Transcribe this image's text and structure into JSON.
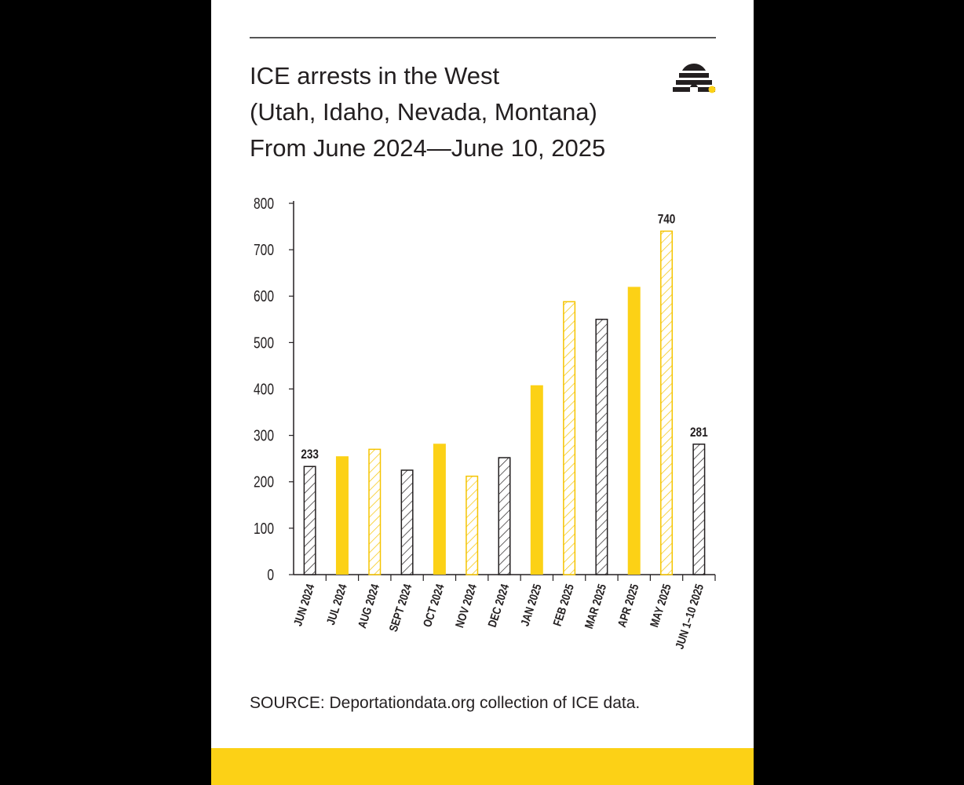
{
  "colors": {
    "accent_yellow": "#fcd116",
    "ink": "#231f20",
    "background": "#ffffff",
    "outer": "#000000"
  },
  "header": {
    "title_lines": [
      "ICE arrests in the West",
      "(Utah, Idaho, Nevada, Montana)",
      "From June 2024—June 10, 2025"
    ],
    "logo_icon": "beehive-icon"
  },
  "source": "SOURCE: Deportationdata.org collection of ICE data.",
  "chart_data": {
    "type": "bar",
    "title": "ICE arrests in the West (Utah, Idaho, Nevada, Montana) From June 2024—June 10, 2025",
    "xlabel": "",
    "ylabel": "",
    "ylim": [
      0,
      800
    ],
    "yticks": [
      0,
      100,
      200,
      300,
      400,
      500,
      600,
      700,
      800
    ],
    "grid": false,
    "categories": [
      "JUN 2024",
      "JUL 2024",
      "AUG 2024",
      "SEPT 2024",
      "OCT 2024",
      "NOV 2024",
      "DEC 2024",
      "JAN 2025",
      "FEB 2025",
      "MAR 2025",
      "APR 2025",
      "MAY 2025",
      "JUN 1–10 2025"
    ],
    "values": [
      233,
      255,
      270,
      225,
      282,
      212,
      252,
      408,
      588,
      550,
      620,
      740,
      281
    ],
    "styles": [
      "hatch-black",
      "solid-yellow",
      "hatch-yellow",
      "hatch-black",
      "solid-yellow",
      "hatch-yellow",
      "hatch-black",
      "solid-yellow",
      "hatch-yellow",
      "hatch-black",
      "solid-yellow",
      "hatch-yellow",
      "hatch-black"
    ],
    "data_labels": [
      "233",
      "",
      "",
      "",
      "",
      "",
      "",
      "",
      "",
      "",
      "",
      "740",
      "281"
    ]
  }
}
